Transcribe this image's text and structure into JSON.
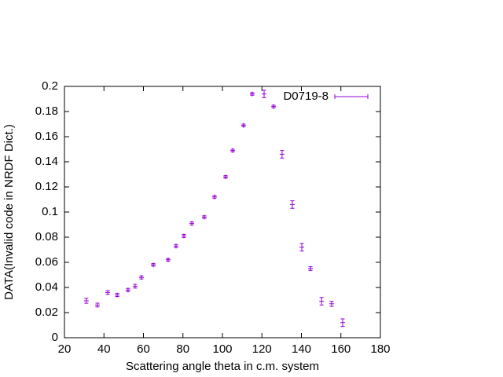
{
  "chart_data": {
    "type": "scatter",
    "xlabel": "Scattering angle theta in c.m. system",
    "ylabel": "DATA(Invalid code in NRDF Dict.)",
    "xlim": [
      20,
      180
    ],
    "xticks": [
      20,
      40,
      60,
      80,
      100,
      120,
      140,
      160,
      180
    ],
    "ylim": [
      0,
      0.2
    ],
    "yticks": [
      0,
      0.02,
      0.04,
      0.06,
      0.08,
      0.1,
      0.12,
      0.14,
      0.16,
      0.18,
      0.2
    ],
    "legend": "upper right",
    "series": [
      {
        "name": "D0719-8",
        "color": "#9400d3",
        "x": [
          31.1,
          36.7,
          41.9,
          46.7,
          52.2,
          55.8,
          59,
          65,
          72.5,
          76.5,
          80.5,
          84.5,
          90.8,
          96,
          101.6,
          105.2,
          110.7,
          115.1,
          121.1,
          125.9,
          130.2,
          135.4,
          140.2,
          144.6,
          150.2,
          155.3,
          160.9
        ],
        "values": [
          0.0294,
          0.026,
          0.036,
          0.034,
          0.038,
          0.041,
          0.048,
          0.058,
          0.062,
          0.073,
          0.081,
          0.091,
          0.096,
          0.112,
          0.128,
          0.149,
          0.169,
          0.194,
          0.194,
          0.184,
          0.146,
          0.106,
          0.072,
          0.055,
          0.029,
          0.027,
          0.012
        ],
        "errors": [
          0.002,
          0.0015,
          0.0015,
          0.0012,
          0.0012,
          0.0015,
          0.0012,
          0.001,
          0.001,
          0.0012,
          0.0012,
          0.0012,
          0.001,
          0.001,
          0.001,
          0.001,
          0.001,
          0.001,
          0.003,
          0.001,
          0.003,
          0.003,
          0.003,
          0.0015,
          0.003,
          0.002,
          0.003
        ]
      }
    ]
  }
}
